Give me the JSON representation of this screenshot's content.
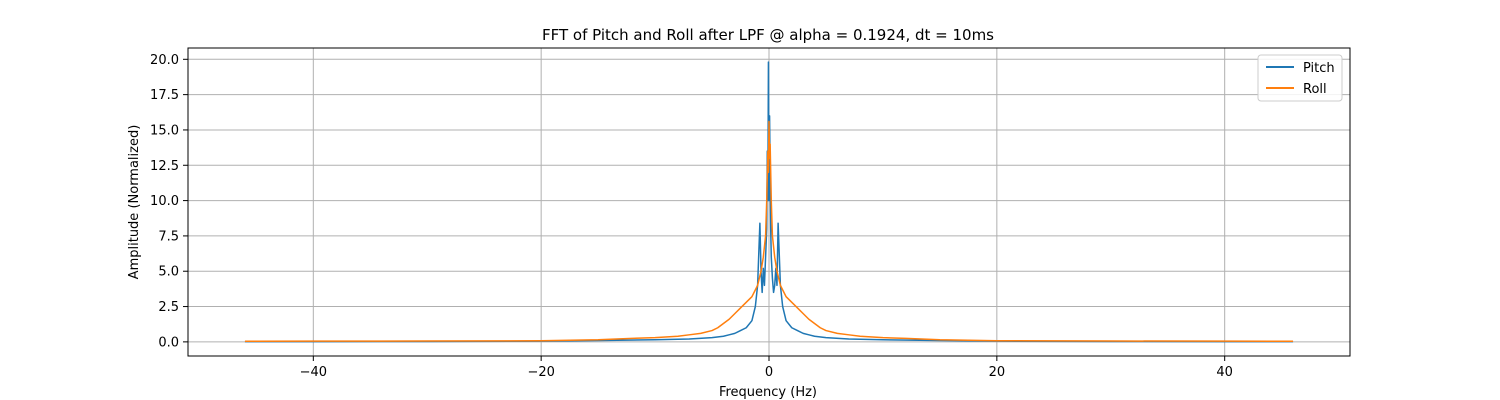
{
  "chart_data": {
    "type": "line",
    "title": "FFT of Pitch and Roll after LPF @ alpha = 0.1924, dt = 10ms",
    "xlabel": "Frequency (Hz)",
    "ylabel": "Amplitude (Normalized)",
    "xlim": [
      -51,
      51
    ],
    "ylim": [
      -1.0,
      20.8
    ],
    "xticks": [
      -40,
      -20,
      0,
      20,
      40
    ],
    "xtick_labels": [
      "−40",
      "−20",
      "0",
      "20",
      "40"
    ],
    "yticks": [
      0.0,
      2.5,
      5.0,
      7.5,
      10.0,
      12.5,
      15.0,
      17.5,
      20.0
    ],
    "ytick_labels": [
      "0.0",
      "2.5",
      "5.0",
      "7.5",
      "10.0",
      "12.5",
      "15.0",
      "17.5",
      "20.0"
    ],
    "grid": true,
    "legend_position": "top-right",
    "series": [
      {
        "name": "Pitch",
        "color": "#1f77b4",
        "x": [
          -46,
          -40,
          -30,
          -20,
          -15,
          -10,
          -7,
          -5,
          -4,
          -3.5,
          -3,
          -2.5,
          -2,
          -1.5,
          -1.2,
          -1.0,
          -0.8,
          -0.7,
          -0.6,
          -0.5,
          -0.4,
          -0.3,
          -0.2,
          -0.15,
          -0.1,
          -0.05,
          0,
          0.05,
          0.1,
          0.15,
          0.2,
          0.3,
          0.4,
          0.5,
          0.6,
          0.7,
          0.8,
          1.0,
          1.2,
          1.5,
          2,
          2.5,
          3,
          3.5,
          4,
          5,
          7,
          10,
          15,
          20,
          30,
          40,
          46
        ],
        "y": [
          0.02,
          0.02,
          0.03,
          0.05,
          0.1,
          0.15,
          0.2,
          0.3,
          0.4,
          0.5,
          0.6,
          0.8,
          1.0,
          1.5,
          2.5,
          4.0,
          8.4,
          5.0,
          3.5,
          5.2,
          4.0,
          6.0,
          8.0,
          13.5,
          10.0,
          19.8,
          10.0,
          16.0,
          12.0,
          8.0,
          6.0,
          4.5,
          3.5,
          4.0,
          5.2,
          4.0,
          8.4,
          4.0,
          2.5,
          1.5,
          1.0,
          0.8,
          0.6,
          0.5,
          0.4,
          0.3,
          0.2,
          0.15,
          0.1,
          0.05,
          0.03,
          0.02,
          0.02
        ]
      },
      {
        "name": "Roll",
        "color": "#ff7f0e",
        "x": [
          -46,
          -40,
          -30,
          -20,
          -15,
          -12,
          -10,
          -8,
          -7,
          -6,
          -5,
          -4.5,
          -4,
          -3.5,
          -3,
          -2.5,
          -2,
          -1.5,
          -1.0,
          -0.7,
          -0.5,
          -0.3,
          -0.2,
          -0.1,
          -0.05,
          0,
          0.05,
          0.1,
          0.2,
          0.3,
          0.5,
          0.7,
          1.0,
          1.5,
          2,
          2.5,
          3,
          3.5,
          4,
          4.5,
          5,
          6,
          7,
          8,
          10,
          12,
          15,
          20,
          30,
          40,
          46
        ],
        "y": [
          0.04,
          0.05,
          0.06,
          0.08,
          0.15,
          0.25,
          0.3,
          0.4,
          0.5,
          0.6,
          0.8,
          1.0,
          1.3,
          1.6,
          2.0,
          2.4,
          2.8,
          3.2,
          4.0,
          5.0,
          6.0,
          7.5,
          10.0,
          13.5,
          12.0,
          15.6,
          13.0,
          14.0,
          10.0,
          7.5,
          6.0,
          5.0,
          4.0,
          3.2,
          2.8,
          2.4,
          2.0,
          1.6,
          1.3,
          1.0,
          0.8,
          0.6,
          0.5,
          0.4,
          0.3,
          0.25,
          0.15,
          0.08,
          0.06,
          0.05,
          0.04
        ]
      }
    ]
  }
}
